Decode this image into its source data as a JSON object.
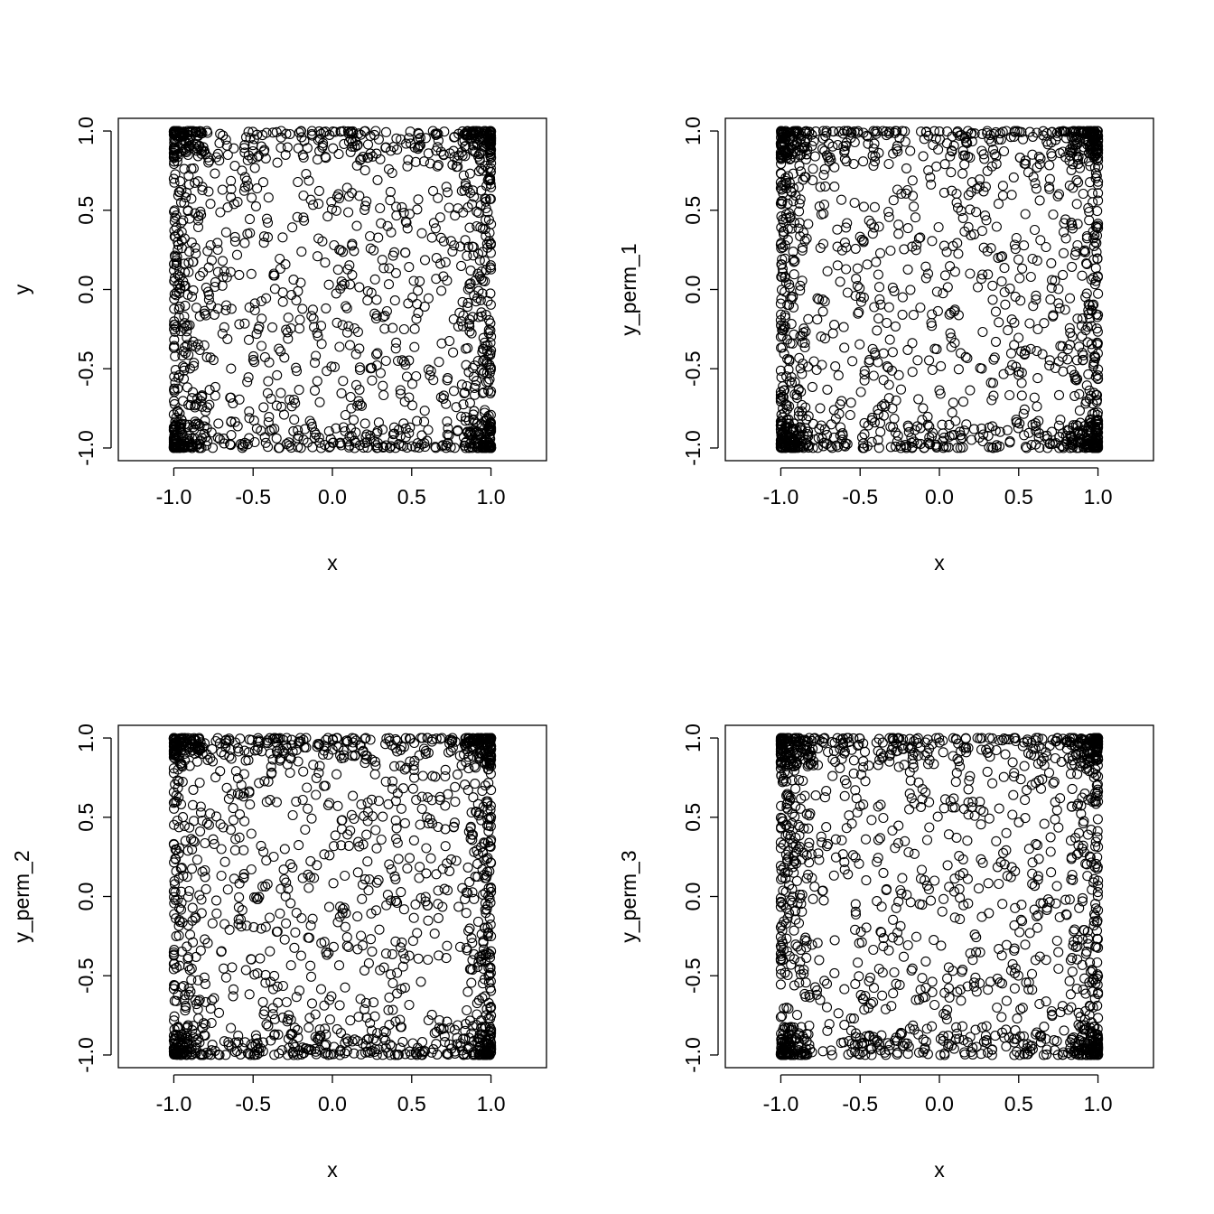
{
  "chart_data": [
    {
      "type": "scatter",
      "xlabel": "x",
      "ylabel": "y",
      "xlim": [
        -1.35,
        1.35
      ],
      "ylim": [
        -1.08,
        1.08
      ],
      "xticks": [
        -1.0,
        -0.5,
        0.0,
        0.5,
        1.0
      ],
      "yticks": [
        -1.0,
        -0.5,
        0.0,
        0.5,
        1.0
      ],
      "xtick_labels": [
        "-1.0",
        "-0.5",
        "0.0",
        "0.5",
        "1.0"
      ],
      "ytick_labels": [
        "-1.0",
        "-0.5",
        "0.0",
        "0.5",
        "1.0"
      ],
      "grid": false,
      "marker": "open-circle",
      "point_count": 1500,
      "seed": 11,
      "points": []
    },
    {
      "type": "scatter",
      "xlabel": "x",
      "ylabel": "y_perm_1",
      "xlim": [
        -1.35,
        1.35
      ],
      "ylim": [
        -1.08,
        1.08
      ],
      "xticks": [
        -1.0,
        -0.5,
        0.0,
        0.5,
        1.0
      ],
      "yticks": [
        -1.0,
        -0.5,
        0.0,
        0.5,
        1.0
      ],
      "xtick_labels": [
        "-1.0",
        "-0.5",
        "0.0",
        "0.5",
        "1.0"
      ],
      "ytick_labels": [
        "-1.0",
        "-0.5",
        "0.0",
        "0.5",
        "1.0"
      ],
      "grid": false,
      "marker": "open-circle",
      "point_count": 1500,
      "seed": 23,
      "points": []
    },
    {
      "type": "scatter",
      "xlabel": "x",
      "ylabel": "y_perm_2",
      "xlim": [
        -1.35,
        1.35
      ],
      "ylim": [
        -1.08,
        1.08
      ],
      "xticks": [
        -1.0,
        -0.5,
        0.0,
        0.5,
        1.0
      ],
      "yticks": [
        -1.0,
        -0.5,
        0.0,
        0.5,
        1.0
      ],
      "xtick_labels": [
        "-1.0",
        "-0.5",
        "0.0",
        "0.5",
        "1.0"
      ],
      "ytick_labels": [
        "-1.0",
        "-0.5",
        "0.0",
        "0.5",
        "1.0"
      ],
      "grid": false,
      "marker": "open-circle",
      "point_count": 1500,
      "seed": 37,
      "points": []
    },
    {
      "type": "scatter",
      "xlabel": "x",
      "ylabel": "y_perm_3",
      "xlim": [
        -1.35,
        1.35
      ],
      "ylim": [
        -1.08,
        1.08
      ],
      "xticks": [
        -1.0,
        -0.5,
        0.0,
        0.5,
        1.0
      ],
      "yticks": [
        -1.0,
        -0.5,
        0.0,
        0.5,
        1.0
      ],
      "xtick_labels": [
        "-1.0",
        "-0.5",
        "0.0",
        "0.5",
        "1.0"
      ],
      "ytick_labels": [
        "-1.0",
        "-0.5",
        "0.0",
        "0.5",
        "1.0"
      ],
      "grid": false,
      "marker": "open-circle",
      "point_count": 1500,
      "seed": 53,
      "points": []
    }
  ]
}
